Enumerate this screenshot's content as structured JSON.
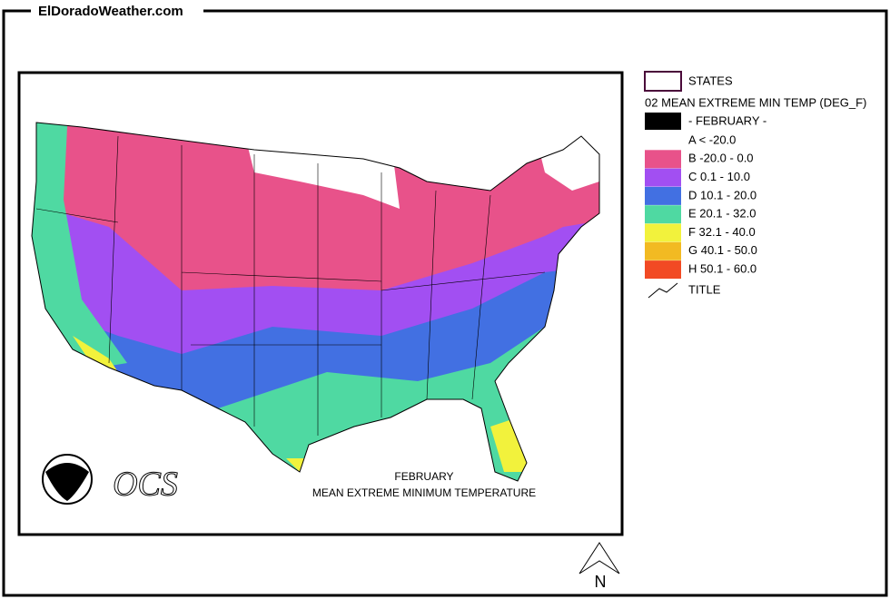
{
  "site": "ElDoradoWeather.com",
  "legend": {
    "states_label": "STATES",
    "layer_title": "02 MEAN EXTREME MIN TEMP (DEG_F)",
    "period": "- FEBRUARY -",
    "period_color": "#000000",
    "classes": [
      {
        "label": "A < -20.0",
        "color": "#ffffff"
      },
      {
        "label": "B -20.0 - 0.0",
        "color": "#e8528a"
      },
      {
        "label": "C 0.1 - 10.0",
        "color": "#a24ff2"
      },
      {
        "label": "D 10.1 - 20.0",
        "color": "#4270e2"
      },
      {
        "label": "E 20.1 - 32.0",
        "color": "#4fd9a2"
      },
      {
        "label": "F 32.1 - 40.0",
        "color": "#f2f23c"
      },
      {
        "label": "G 40.1 - 50.0",
        "color": "#f2ba22"
      },
      {
        "label": "H 50.1 - 60.0",
        "color": "#f24a24"
      }
    ],
    "title_label": "TITLE"
  },
  "map": {
    "caption_line1": "FEBRUARY",
    "caption_line2": "MEAN EXTREME MINIMUM TEMPERATURE",
    "logo_text": "OCS",
    "north": "N"
  }
}
